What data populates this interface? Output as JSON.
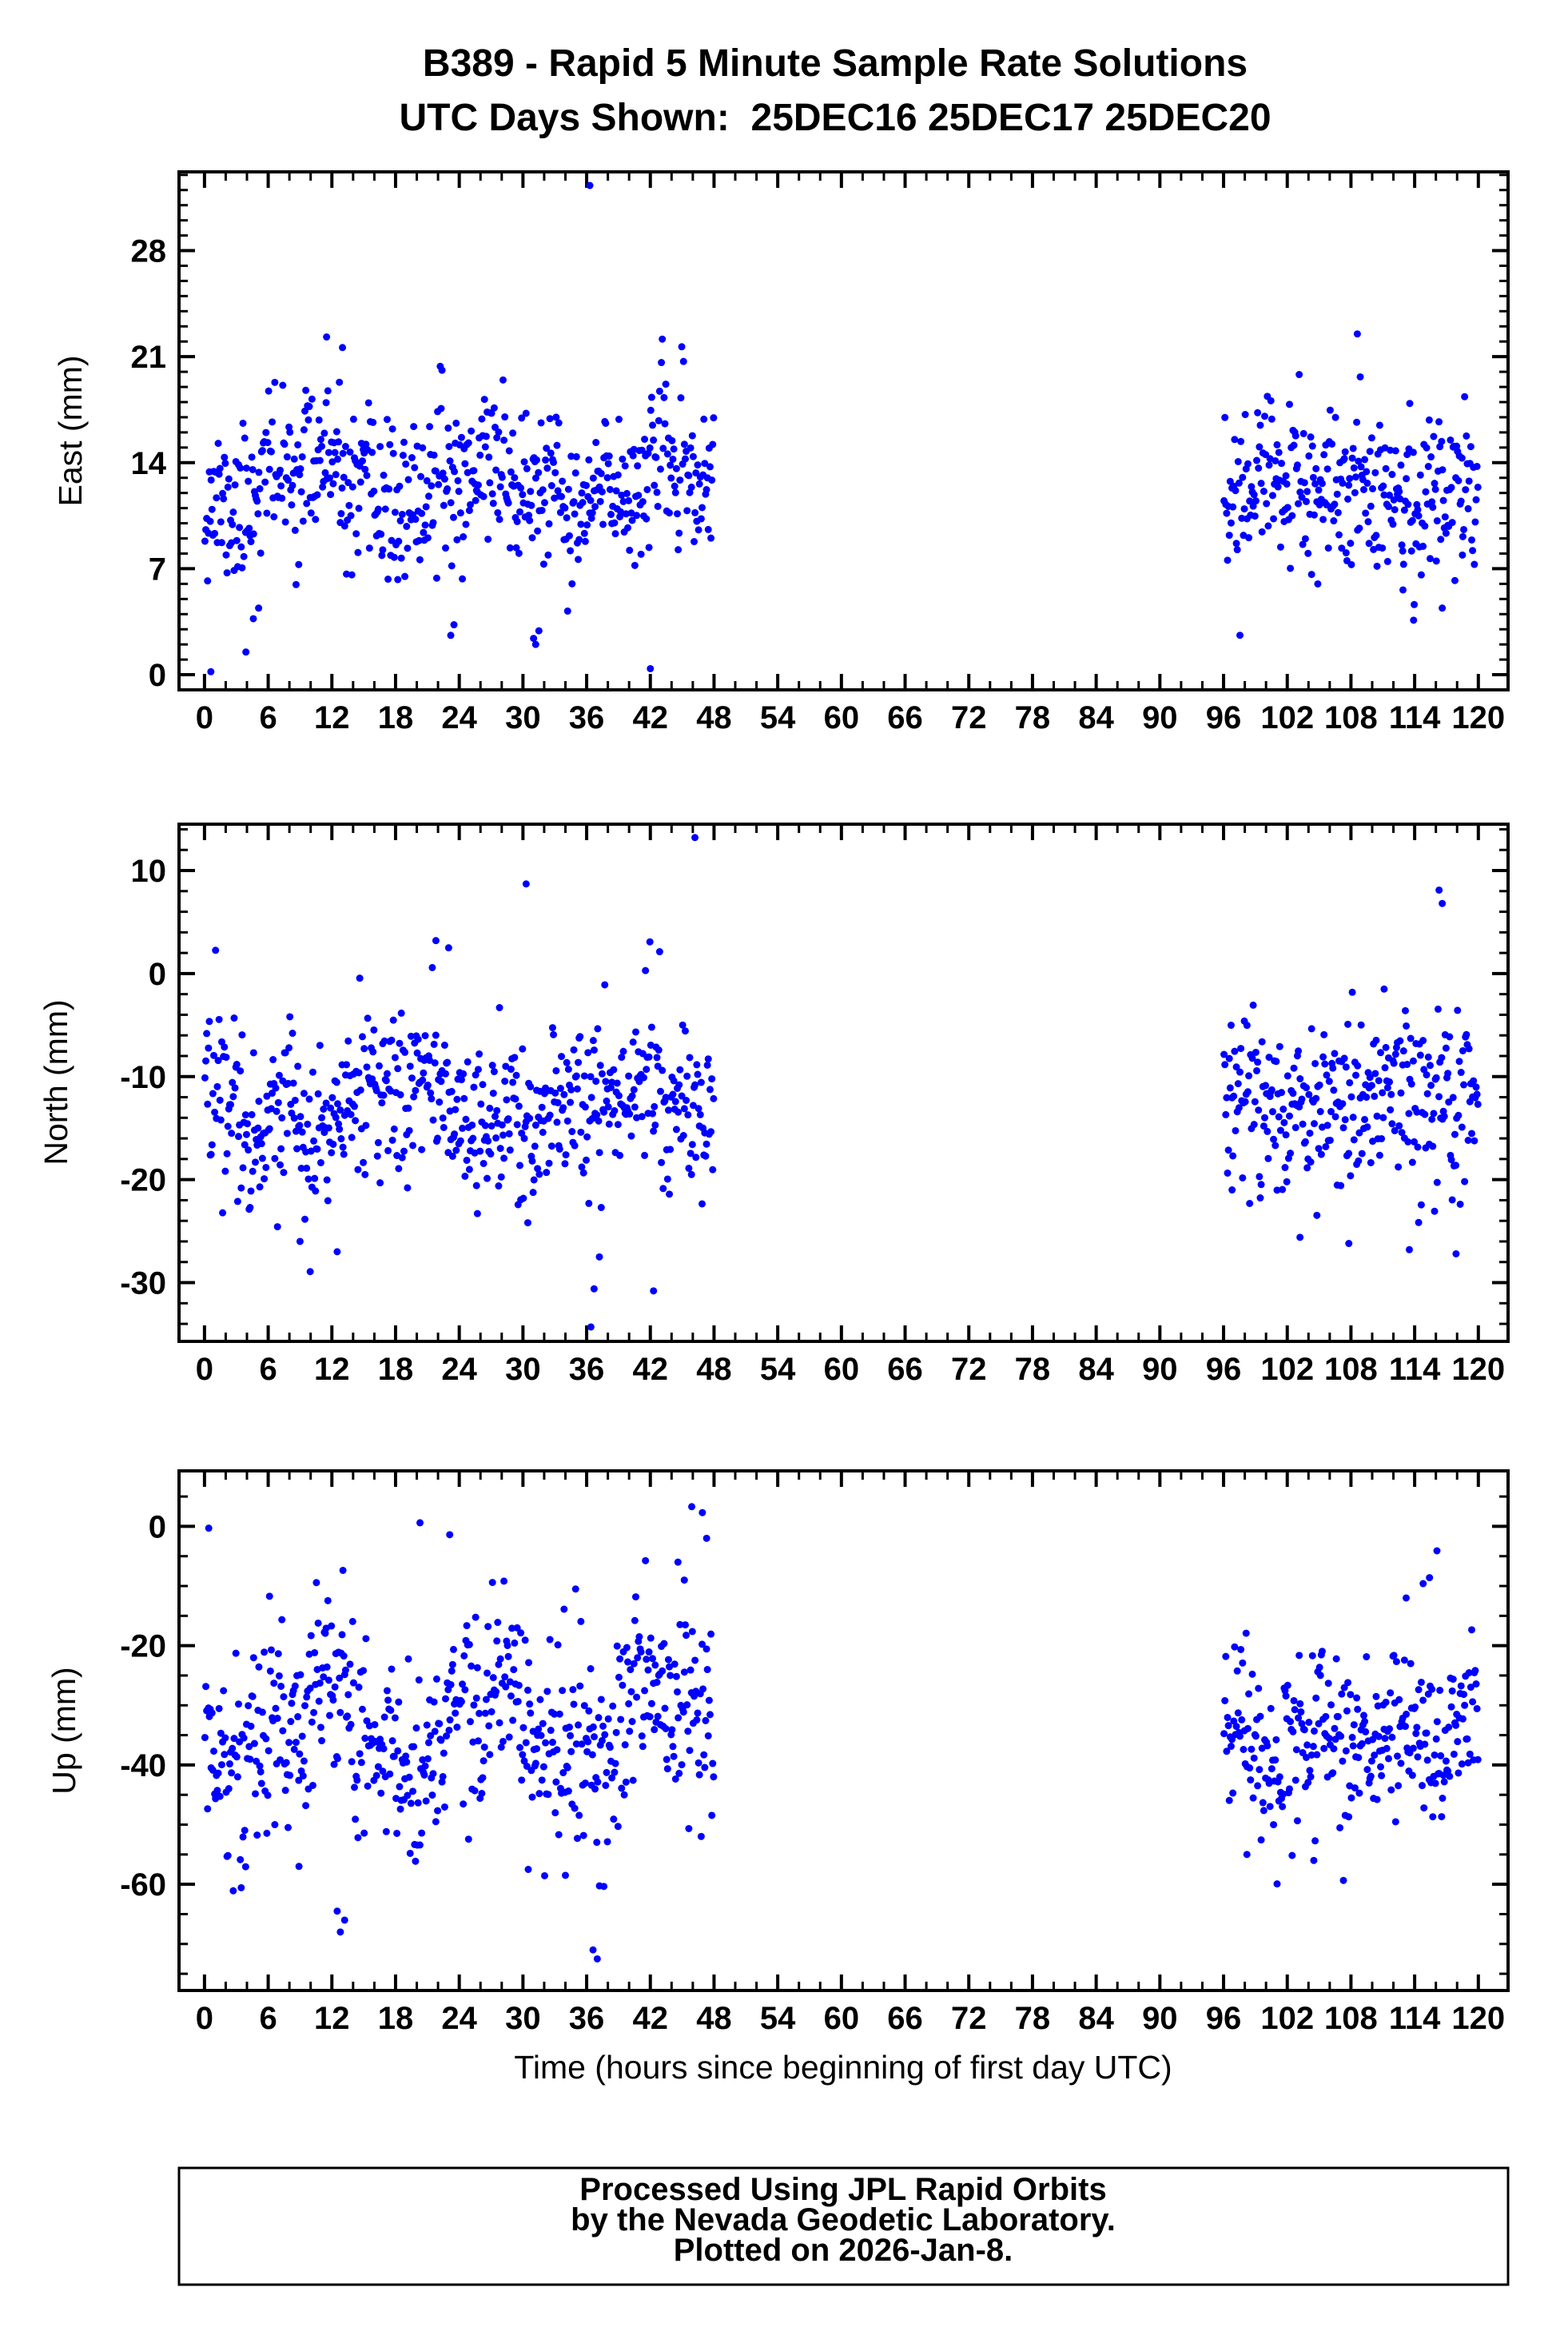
{
  "figure": {
    "title_line1": "B389 - Rapid 5 Minute Sample Rate Solutions",
    "title_line2": "UTC Days Shown:  25DEC16 25DEC17 25DEC20",
    "x_axis_title": "Time (hours since beginning of first day UTC)",
    "footer": {
      "line1": "Processed Using JPL Rapid Orbits",
      "line2": "by the Nevada Geodetic Laboratory.",
      "line3": "Plotted on 2026-Jan-8."
    },
    "colors": {
      "marker": "#0000ff",
      "axis": "#000000",
      "background": "#ffffff"
    }
  },
  "chart_data": [
    {
      "type": "scatter",
      "name": "east",
      "ylabel": "East (mm)",
      "xlabel": "",
      "ylim": [
        -1.0,
        33.2
      ],
      "xlim": [
        -2.4,
        122.8
      ],
      "xticks": [
        0,
        6,
        12,
        18,
        24,
        30,
        36,
        42,
        48,
        54,
        60,
        66,
        72,
        78,
        84,
        90,
        96,
        102,
        108,
        114,
        120
      ],
      "yticks": [
        0,
        7,
        14,
        21,
        28
      ],
      "x_minor_step": 2,
      "y_minor_step": 1,
      "legend": "none",
      "grid": false,
      "seed": 11,
      "clusters": [
        {
          "x0": 0,
          "x1": 48,
          "n": 576,
          "mean": 12.4,
          "std": 2.5,
          "wander": [
            [
              1.5,
              17.0,
              4.4
            ],
            [
              0.8,
              5.3,
              1.0
            ]
          ]
        },
        {
          "x0": 96,
          "x1": 120,
          "n": 288,
          "mean": 12.2,
          "std": 2.6,
          "wander": [
            [
              1.0,
              9.0,
              0.4
            ]
          ]
        }
      ],
      "outliers": [
        [
          36.3,
          32.3
        ],
        [
          0.6,
          0.2
        ],
        [
          42.0,
          0.4
        ],
        [
          31.0,
          2.4
        ],
        [
          31.2,
          2.0
        ],
        [
          31.5,
          2.9
        ],
        [
          23.2,
          2.6
        ],
        [
          23.5,
          3.3
        ],
        [
          4.6,
          3.7
        ],
        [
          5.1,
          4.4
        ],
        [
          3.9,
          1.5
        ],
        [
          11.5,
          22.3
        ],
        [
          13.0,
          21.6
        ],
        [
          108.6,
          22.5
        ],
        [
          113.9,
          3.6
        ],
        [
          116.6,
          4.4
        ],
        [
          112.9,
          5.6
        ],
        [
          118.5,
          7.9
        ]
      ]
    },
    {
      "type": "scatter",
      "name": "north",
      "ylabel": "North (mm)",
      "xlabel": "",
      "ylim": [
        -35.7,
        14.5
      ],
      "xlim": [
        -2.4,
        122.8
      ],
      "xticks": [
        0,
        6,
        12,
        18,
        24,
        30,
        36,
        42,
        48,
        54,
        60,
        66,
        72,
        78,
        84,
        90,
        96,
        102,
        108,
        114,
        120
      ],
      "yticks": [
        10,
        0,
        -10,
        -20,
        -30
      ],
      "x_minor_step": 2,
      "y_minor_step": 2,
      "legend": "none",
      "grid": false,
      "seed": 22,
      "clusters": [
        {
          "x0": 0,
          "x1": 48,
          "n": 576,
          "mean": -13.0,
          "std": 4.0,
          "wander": [
            [
              2.2,
              21.0,
              2.0
            ],
            [
              1.1,
              6.7,
              0.5
            ]
          ]
        },
        {
          "x0": 96,
          "x1": 120,
          "n": 288,
          "mean": -12.5,
          "std": 4.3,
          "wander": [
            [
              1.4,
              8.0,
              0.9
            ]
          ]
        }
      ],
      "outliers": [
        [
          46.2,
          13.2
        ],
        [
          30.3,
          8.7
        ],
        [
          21.8,
          3.2
        ],
        [
          23.0,
          2.5
        ],
        [
          36.4,
          -34.3
        ],
        [
          36.7,
          -30.6
        ],
        [
          42.3,
          -30.8
        ],
        [
          37.2,
          -27.5
        ],
        [
          9.0,
          -26.0
        ],
        [
          12.5,
          -27.0
        ],
        [
          116.3,
          8.1
        ],
        [
          116.6,
          6.8
        ],
        [
          103.2,
          -25.6
        ],
        [
          107.8,
          -26.2
        ],
        [
          113.5,
          -26.8
        ],
        [
          117.9,
          -27.2
        ],
        [
          96.8,
          -21.0
        ]
      ]
    },
    {
      "type": "scatter",
      "name": "up",
      "ylabel": "Up (mm)",
      "xlabel": "Time (hours since beginning of first day UTC)",
      "ylim": [
        -77.8,
        9.3
      ],
      "xlim": [
        -2.4,
        122.8
      ],
      "xticks": [
        0,
        6,
        12,
        18,
        24,
        30,
        36,
        42,
        48,
        54,
        60,
        66,
        72,
        78,
        84,
        90,
        96,
        102,
        108,
        114,
        120
      ],
      "yticks": [
        0,
        -20,
        -40,
        -60
      ],
      "x_minor_step": 2,
      "y_minor_step": 5,
      "legend": "none",
      "grid": false,
      "seed": 33,
      "clusters": [
        {
          "x0": 0,
          "x1": 48,
          "n": 576,
          "mean": -34.0,
          "std": 8.5,
          "wander": [
            [
              6.0,
              16.0,
              3.6
            ],
            [
              2.5,
              5.9,
              2.2
            ]
          ]
        },
        {
          "x0": 96,
          "x1": 120,
          "n": 288,
          "mean": -36.0,
          "std": 7.0,
          "wander": [
            [
              2.5,
              7.5,
              1.7
            ]
          ]
        }
      ],
      "outliers": [
        [
          0.4,
          -0.3
        ],
        [
          20.3,
          0.6
        ],
        [
          23.1,
          -1.4
        ],
        [
          45.9,
          3.3
        ],
        [
          46.9,
          2.3
        ],
        [
          47.3,
          -2.0
        ],
        [
          44.6,
          -6.0
        ],
        [
          45.2,
          -9.0
        ],
        [
          36.6,
          -71.0
        ],
        [
          37.0,
          -72.5
        ],
        [
          12.5,
          -64.5
        ],
        [
          12.8,
          -68.0
        ],
        [
          13.2,
          -66.0
        ],
        [
          8.9,
          -57.0
        ],
        [
          30.5,
          -57.5
        ],
        [
          34.0,
          -58.5
        ],
        [
          115.4,
          -8.6
        ],
        [
          116.1,
          -4.1
        ],
        [
          114.8,
          -9.6
        ],
        [
          113.2,
          -12.0
        ],
        [
          98.2,
          -55.0
        ],
        [
          104.5,
          -56.0
        ]
      ]
    }
  ]
}
